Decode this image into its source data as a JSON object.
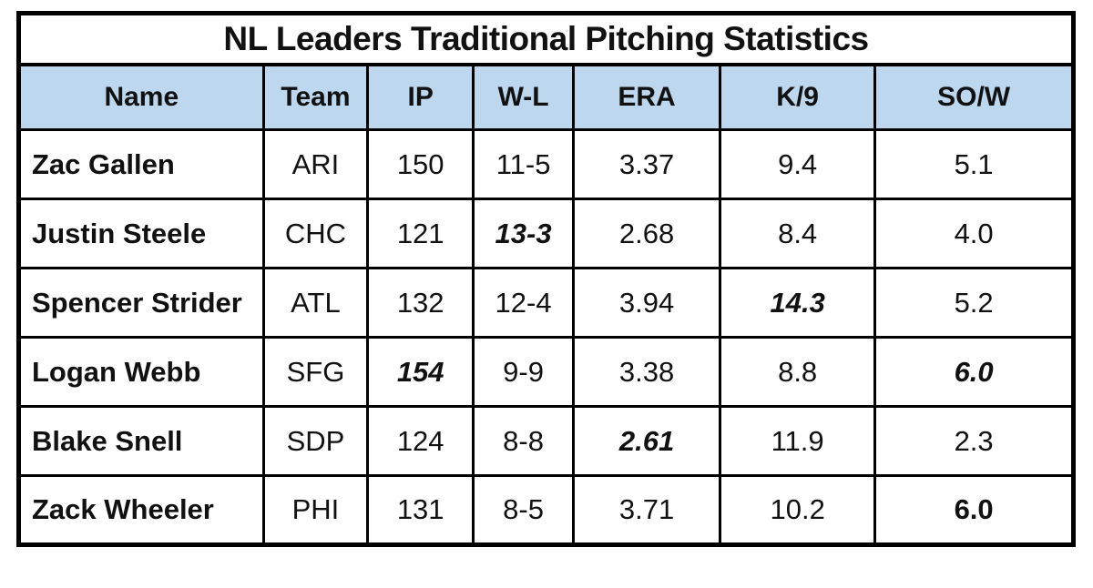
{
  "title": "NL Leaders Traditional Pitching Statistics",
  "colors": {
    "header_bg": "#BDD7EE",
    "border": "#000000",
    "page_bg": "#FFFFFF",
    "text": "#111111"
  },
  "chart_data": {
    "type": "table",
    "title": "NL Leaders Traditional Pitching Statistics",
    "columns": [
      "Name",
      "Team",
      "IP",
      "W-L",
      "ERA",
      "K/9",
      "SO/W"
    ],
    "rows": [
      {
        "cells": [
          {
            "text": "Zac Gallen",
            "emphasis": "bold"
          },
          {
            "text": "ARI",
            "emphasis": "normal"
          },
          {
            "text": "150",
            "emphasis": "normal"
          },
          {
            "text": "11-5",
            "emphasis": "normal"
          },
          {
            "text": "3.37",
            "emphasis": "normal"
          },
          {
            "text": "9.4",
            "emphasis": "normal"
          },
          {
            "text": "5.1",
            "emphasis": "normal"
          }
        ]
      },
      {
        "cells": [
          {
            "text": "Justin Steele",
            "emphasis": "bold"
          },
          {
            "text": "CHC",
            "emphasis": "normal"
          },
          {
            "text": "121",
            "emphasis": "normal"
          },
          {
            "text": "13-3",
            "emphasis": "bold-italic"
          },
          {
            "text": "2.68",
            "emphasis": "normal"
          },
          {
            "text": "8.4",
            "emphasis": "normal"
          },
          {
            "text": "4.0",
            "emphasis": "normal"
          }
        ]
      },
      {
        "cells": [
          {
            "text": "Spencer Strider",
            "emphasis": "bold"
          },
          {
            "text": "ATL",
            "emphasis": "normal"
          },
          {
            "text": "132",
            "emphasis": "normal"
          },
          {
            "text": "12-4",
            "emphasis": "normal"
          },
          {
            "text": "3.94",
            "emphasis": "normal"
          },
          {
            "text": "14.3",
            "emphasis": "bold-italic"
          },
          {
            "text": "5.2",
            "emphasis": "normal"
          }
        ]
      },
      {
        "cells": [
          {
            "text": "Logan Webb",
            "emphasis": "bold"
          },
          {
            "text": "SFG",
            "emphasis": "normal"
          },
          {
            "text": "154",
            "emphasis": "bold-italic"
          },
          {
            "text": "9-9",
            "emphasis": "normal"
          },
          {
            "text": "3.38",
            "emphasis": "normal"
          },
          {
            "text": "8.8",
            "emphasis": "normal"
          },
          {
            "text": "6.0",
            "emphasis": "bold-italic"
          }
        ]
      },
      {
        "cells": [
          {
            "text": "Blake Snell",
            "emphasis": "bold"
          },
          {
            "text": "SDP",
            "emphasis": "normal"
          },
          {
            "text": "124",
            "emphasis": "normal"
          },
          {
            "text": "8-8",
            "emphasis": "normal"
          },
          {
            "text": "2.61",
            "emphasis": "bold-italic"
          },
          {
            "text": "11.9",
            "emphasis": "normal"
          },
          {
            "text": "2.3",
            "emphasis": "normal"
          }
        ]
      },
      {
        "cells": [
          {
            "text": "Zack Wheeler",
            "emphasis": "bold"
          },
          {
            "text": "PHI",
            "emphasis": "normal"
          },
          {
            "text": "131",
            "emphasis": "normal"
          },
          {
            "text": "8-5",
            "emphasis": "normal"
          },
          {
            "text": "3.71",
            "emphasis": "normal"
          },
          {
            "text": "10.2",
            "emphasis": "normal"
          },
          {
            "text": "6.0",
            "emphasis": "bold"
          }
        ]
      }
    ]
  }
}
